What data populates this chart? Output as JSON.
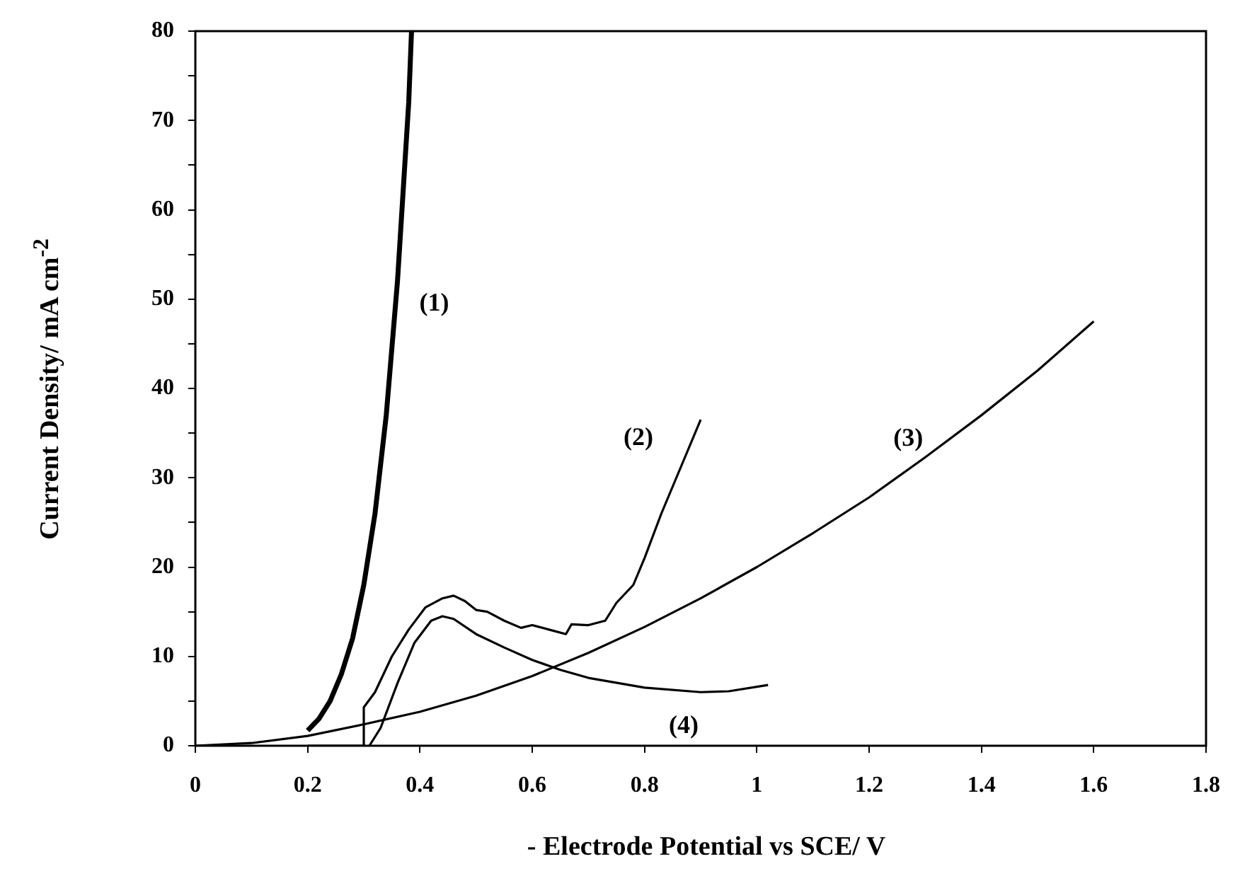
{
  "chart_data": {
    "type": "line",
    "xlabel": "- Electrode Potential vs SCE/ V",
    "ylabel": "Current Density/ mA cm$^{-2}$",
    "xlim": [
      0,
      1.8
    ],
    "xticks": [
      0,
      0.2,
      0.4,
      0.6,
      0.8,
      1,
      1.2,
      1.4,
      1.6,
      1.8
    ],
    "ylim": [
      0,
      80
    ],
    "yticks": [
      0,
      {
        "value": 5,
        "label": null
      },
      10,
      {
        "value": 15,
        "label": null
      },
      20,
      {
        "value": 25,
        "label": null
      },
      30,
      {
        "value": 35,
        "label": null
      },
      40,
      {
        "value": 45,
        "label": null
      },
      50,
      {
        "value": 55,
        "label": null
      },
      60,
      {
        "value": 65,
        "label": null
      },
      70,
      {
        "value": 75,
        "label": null
      },
      80
    ],
    "grid": false,
    "legend": false,
    "marker": "none",
    "line_style": "solid",
    "series": [
      {
        "name": "(1)",
        "color": "#000000",
        "x": [
          0.2,
          0.22,
          0.24,
          0.26,
          0.28,
          0.3,
          0.32,
          0.34,
          0.36,
          0.38,
          0.385
        ],
        "values": [
          1.7,
          3,
          5,
          8,
          12,
          18,
          26,
          37,
          52,
          72,
          80
        ]
      },
      {
        "name": "(2)",
        "color": "#000000",
        "x": [
          0.2,
          0.3,
          0.3,
          0.32,
          0.35,
          0.38,
          0.41,
          0.44,
          0.46,
          0.48,
          0.5,
          0.52,
          0.55,
          0.58,
          0.6,
          0.63,
          0.66,
          0.67,
          0.7,
          0.73,
          0.75,
          0.78,
          0.8,
          0.83,
          0.87,
          0.9
        ],
        "values": [
          0,
          0,
          4.3,
          6,
          10,
          13,
          15.5,
          16.5,
          16.8,
          16.2,
          15.2,
          15,
          14,
          13.2,
          13.5,
          13,
          12.5,
          13.6,
          13.5,
          14,
          16,
          18,
          21,
          26,
          32,
          36.5
        ]
      },
      {
        "name": "(3)",
        "color": "#000000",
        "x": [
          0,
          0.1,
          0.2,
          0.3,
          0.4,
          0.5,
          0.6,
          0.7,
          0.8,
          0.9,
          1,
          1.1,
          1.2,
          1.3,
          1.4,
          1.5,
          1.6
        ],
        "values": [
          0,
          0.3,
          1.1,
          2.4,
          3.8,
          5.6,
          7.8,
          10.4,
          13.3,
          16.5,
          20,
          23.8,
          27.8,
          32.3,
          37,
          42,
          47.5
        ]
      },
      {
        "name": "(4)",
        "color": "#000000",
        "x": [
          0.31,
          0.33,
          0.36,
          0.39,
          0.42,
          0.44,
          0.46,
          0.5,
          0.55,
          0.6,
          0.65,
          0.7,
          0.8,
          0.9,
          0.95,
          1.02
        ],
        "values": [
          0,
          2,
          7,
          11.5,
          14,
          14.5,
          14.2,
          12.5,
          11,
          9.6,
          8.5,
          7.6,
          6.5,
          6,
          6.1,
          6.8
        ]
      }
    ]
  }
}
